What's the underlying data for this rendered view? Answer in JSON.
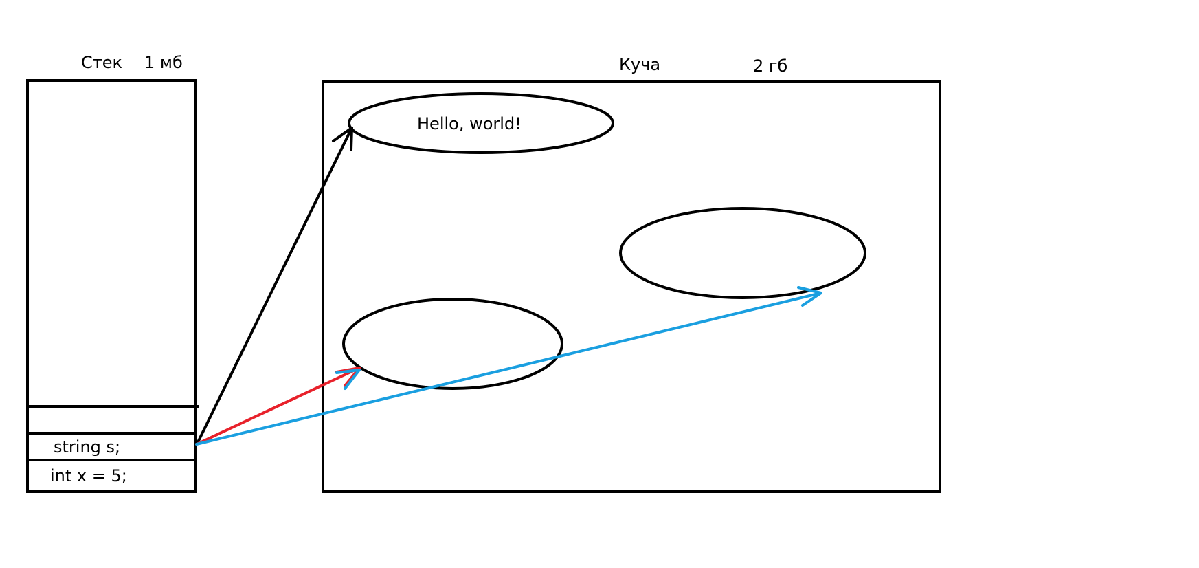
{
  "stack": {
    "title": "Стек",
    "size": "1 мб",
    "cells": [
      {
        "text": ""
      },
      {
        "text": "string s;"
      },
      {
        "text": "int x = 5;"
      }
    ]
  },
  "heap": {
    "title": "Куча",
    "size": "2 гб",
    "objects": [
      {
        "text": "Hello, world!"
      },
      {
        "text": ""
      },
      {
        "text": ""
      }
    ]
  },
  "colors": {
    "outline": "#000000",
    "arrow_black": "#000000",
    "arrow_red": "#e8212b",
    "arrow_blue": "#1a9fe0"
  }
}
